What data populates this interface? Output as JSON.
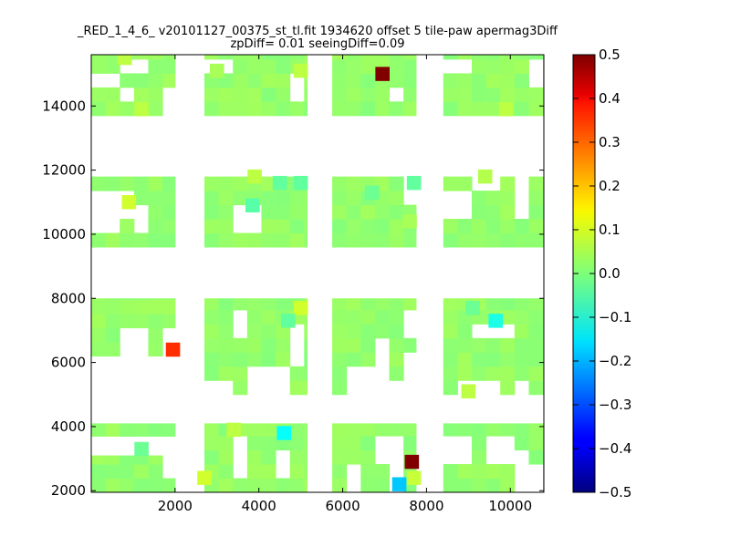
{
  "chart_data": {
    "type": "heatmap",
    "title_line1": "_RED_1_4_6_ v20101127_00375_st_tl.fit 1934620 offset 5 tile-paw apermag3Diff",
    "title_line2": "zpDiff= 0.01 seeingDiff=0.09",
    "xlim": [
      0,
      10800
    ],
    "ylim": [
      1950,
      15600
    ],
    "xticks": [
      2000,
      4000,
      6000,
      8000,
      10000
    ],
    "yticks": [
      2000,
      4000,
      6000,
      8000,
      10000,
      12000,
      14000
    ],
    "colorbar": {
      "colormap": "jet",
      "vmin": -0.5,
      "vmax": 0.5,
      "ticks": [
        "0.5",
        "0.4",
        "0.3",
        "0.2",
        "0.1",
        "0.0",
        "−0.1",
        "−0.2",
        "−0.3",
        "−0.4",
        "−0.5"
      ]
    },
    "default_value": 0.02,
    "cell_size": [
      340,
      440
    ],
    "columns": [
      {
        "x": [
          0,
          2000
        ],
        "blocks": [
          [
            3700,
            4100
          ],
          [
            1950,
            3100
          ],
          [
            6200,
            8000
          ],
          [
            9600,
            11800
          ],
          [
            13700,
            15600
          ]
        ]
      },
      {
        "x": [
          2700,
          5150
        ],
        "blocks": [
          [
            1950,
            4100
          ],
          [
            5000,
            8000
          ],
          [
            9600,
            11800
          ],
          [
            13700,
            15600
          ]
        ]
      },
      {
        "x": [
          5750,
          7750
        ],
        "blocks": [
          [
            1950,
            4100
          ],
          [
            5000,
            8000
          ],
          [
            9600,
            11800
          ],
          [
            13700,
            15600
          ]
        ]
      },
      {
        "x": [
          8400,
          10800
        ],
        "blocks": [
          [
            1950,
            4100
          ],
          [
            5000,
            8000
          ],
          [
            9600,
            11800
          ],
          [
            13700,
            15600
          ]
        ]
      }
    ],
    "holes": [
      {
        "x": 400,
        "y": 3250
      },
      {
        "x": 2000,
        "y": 3250
      },
      {
        "x": 2000,
        "y": 2800
      },
      {
        "x": 3500,
        "y": 3250
      },
      {
        "x": 3500,
        "y": 2800
      },
      {
        "x": 4500,
        "y": 2800
      },
      {
        "x": 6200,
        "y": 2350
      },
      {
        "x": 7100,
        "y": 3250
      },
      {
        "x": 7300,
        "y": 2350
      },
      {
        "x": 10500,
        "y": 2350
      },
      {
        "x": 10200,
        "y": 2800
      },
      {
        "x": 9700,
        "y": 3250
      },
      {
        "x": 8700,
        "y": 3250
      },
      {
        "x": 1000,
        "y": 6400
      },
      {
        "x": 1000,
        "y": 6950
      },
      {
        "x": 2000,
        "y": 6400
      },
      {
        "x": 2000,
        "y": 6950
      },
      {
        "x": 2000,
        "y": 5500
      },
      {
        "x": 1500,
        "y": 5500
      },
      {
        "x": 1500,
        "y": 6000
      },
      {
        "x": 600,
        "y": 5500
      },
      {
        "x": 3500,
        "y": 7500
      },
      {
        "x": 3500,
        "y": 6950
      },
      {
        "x": 4900,
        "y": 6000
      },
      {
        "x": 4600,
        "y": 5500
      },
      {
        "x": 4000,
        "y": 5500
      },
      {
        "x": 5000,
        "y": 7000
      },
      {
        "x": 5000,
        "y": 6400
      },
      {
        "x": 3000,
        "y": 5300
      },
      {
        "x": 6200,
        "y": 5500
      },
      {
        "x": 7000,
        "y": 6400
      },
      {
        "x": 6800,
        "y": 5500
      },
      {
        "x": 7600,
        "y": 6000
      },
      {
        "x": 7600,
        "y": 5500
      },
      {
        "x": 7200,
        "y": 5300
      },
      {
        "x": 7700,
        "y": 7300
      },
      {
        "x": 8900,
        "y": 5200
      },
      {
        "x": 9400,
        "y": 5300
      },
      {
        "x": 10200,
        "y": 5300
      },
      {
        "x": 9800,
        "y": 7000
      },
      {
        "x": 9200,
        "y": 7000
      },
      {
        "x": 400,
        "y": 10400
      },
      {
        "x": 400,
        "y": 10900
      },
      {
        "x": 800,
        "y": 11000
      },
      {
        "x": 800,
        "y": 10700
      },
      {
        "x": 1200,
        "y": 10400
      },
      {
        "x": 3800,
        "y": 10400
      },
      {
        "x": 7600,
        "y": 11300
      },
      {
        "x": 8800,
        "y": 11200
      },
      {
        "x": 8800,
        "y": 10700
      },
      {
        "x": 9400,
        "y": 11600
      },
      {
        "x": 10200,
        "y": 11300
      },
      {
        "x": 10200,
        "y": 10900
      },
      {
        "x": 800,
        "y": 14300
      },
      {
        "x": 400,
        "y": 14800
      },
      {
        "x": 1000,
        "y": 15200
      },
      {
        "x": 1800,
        "y": 13900
      },
      {
        "x": 2000,
        "y": 14300
      },
      {
        "x": 3000,
        "y": 15400
      },
      {
        "x": 5000,
        "y": 14500
      },
      {
        "x": 7200,
        "y": 14400
      },
      {
        "x": 8700,
        "y": 15400
      },
      {
        "x": 10600,
        "y": 14800
      },
      {
        "x": 10600,
        "y": 15300
      }
    ],
    "special_cells": [
      {
        "x": 6950,
        "y": 15000,
        "value": 0.5
      },
      {
        "x": 1950,
        "y": 6400,
        "value": 0.33
      },
      {
        "x": 7650,
        "y": 2900,
        "value": 0.5
      },
      {
        "x": 7350,
        "y": 2200,
        "value": -0.18
      },
      {
        "x": 4600,
        "y": 3800,
        "value": -0.12
      },
      {
        "x": 9650,
        "y": 7300,
        "value": -0.1
      },
      {
        "x": 3850,
        "y": 10900,
        "value": -0.04
      },
      {
        "x": 7600,
        "y": 10400,
        "value": 0.04
      },
      {
        "x": 3000,
        "y": 15100,
        "value": 0.04
      },
      {
        "x": 5000,
        "y": 15100,
        "value": 0.06
      },
      {
        "x": 1200,
        "y": 13900,
        "value": 0.06
      },
      {
        "x": 900,
        "y": 11000,
        "value": 0.08
      },
      {
        "x": 800,
        "y": 15500,
        "value": 0.06
      },
      {
        "x": 5000,
        "y": 7700,
        "value": 0.08
      },
      {
        "x": 3400,
        "y": 3900,
        "value": 0.06
      },
      {
        "x": 2700,
        "y": 2400,
        "value": 0.08
      },
      {
        "x": 9000,
        "y": 5100,
        "value": 0.06
      },
      {
        "x": 9900,
        "y": 13900,
        "value": 0.06
      },
      {
        "x": 9400,
        "y": 11800,
        "value": 0.05
      },
      {
        "x": 3900,
        "y": 11800,
        "value": 0.06
      },
      {
        "x": 7700,
        "y": 2400,
        "value": 0.07
      },
      {
        "x": 4500,
        "y": 11600,
        "value": -0.03
      },
      {
        "x": 5000,
        "y": 11600,
        "value": -0.03
      },
      {
        "x": 4700,
        "y": 7300,
        "value": -0.03
      },
      {
        "x": 1200,
        "y": 3300,
        "value": -0.02
      },
      {
        "x": 7700,
        "y": 11600,
        "value": -0.03
      },
      {
        "x": 9100,
        "y": 7700,
        "value": -0.02
      },
      {
        "x": 6700,
        "y": 11300,
        "value": -0.02
      }
    ]
  }
}
